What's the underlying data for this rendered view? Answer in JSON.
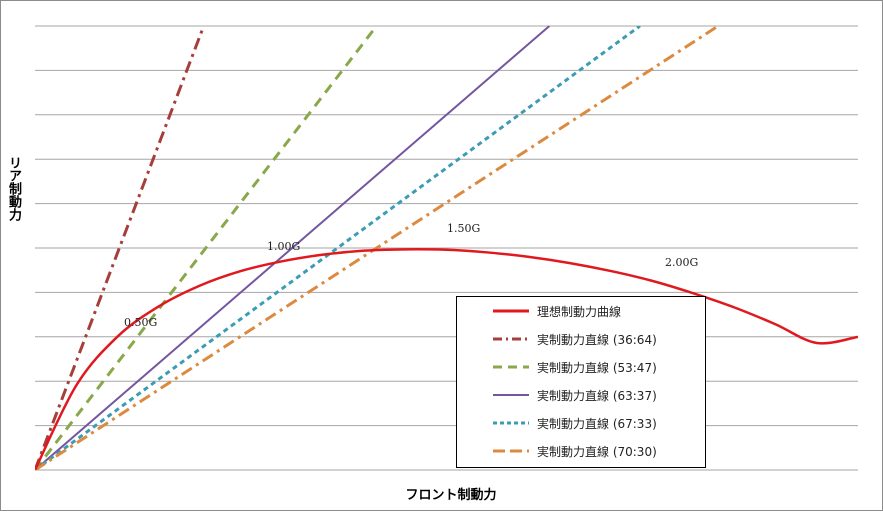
{
  "chart_data": {
    "type": "line",
    "title": "",
    "xlabel": "フロント制動力",
    "ylabel": "リア制動力",
    "xlim": [
      0,
      1
    ],
    "ylim": [
      0,
      1
    ],
    "grid": "horizontal",
    "gridlines": 10,
    "legend_position": "bottom-right",
    "series": [
      {
        "name": "理想制動力曲線",
        "color": "#e0191e",
        "style": "solid",
        "x": [
          0,
          0.05,
          0.1,
          0.15,
          0.2,
          0.25,
          0.3,
          0.35,
          0.4,
          0.45,
          0.5,
          0.55,
          0.6,
          0.65,
          0.7,
          0.75,
          0.8,
          0.85,
          0.9,
          0.95,
          1.0
        ],
        "y": [
          0,
          0.19,
          0.3,
          0.368,
          0.415,
          0.448,
          0.47,
          0.485,
          0.494,
          0.497,
          0.496,
          0.49,
          0.48,
          0.466,
          0.448,
          0.426,
          0.398,
          0.366,
          0.328,
          0.286,
          0.3
        ]
      },
      {
        "name": "実制動力直線 (36:64)",
        "color": "#a63f3c",
        "style": "dash-dot",
        "x": [
          0,
          0.205
        ],
        "y": [
          0,
          1.0
        ]
      },
      {
        "name": "実制動力直線 (53:47)",
        "color": "#88a84a",
        "style": "dashed",
        "x": [
          0,
          0.415
        ],
        "y": [
          0,
          1.0
        ]
      },
      {
        "name": "実制動力直線 (63:37)",
        "color": "#7456a0",
        "style": "solid",
        "x": [
          0,
          0.625
        ],
        "y": [
          0,
          1.0
        ]
      },
      {
        "name": "実制動力直線 (67:33)",
        "color": "#3c9cb4",
        "style": "dotted",
        "x": [
          0,
          0.735
        ],
        "y": [
          0,
          1.0
        ]
      },
      {
        "name": "実制動力直線 (70:30)",
        "color": "#dc8a40",
        "style": "dash-dot",
        "x": [
          0,
          0.83
        ],
        "y": [
          0,
          1.0
        ]
      }
    ],
    "annotations": [
      "0.50G",
      "1.00G",
      "1.50G",
      "2.00G"
    ]
  }
}
